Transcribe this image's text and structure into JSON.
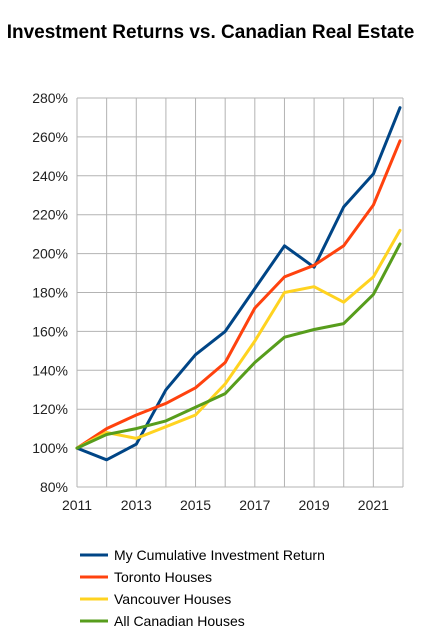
{
  "chart_data": {
    "type": "line",
    "title": "Investment Returns vs. Canadian Real Estate",
    "xlabel": "",
    "ylabel": "",
    "xlim": [
      2011,
      2022
    ],
    "ylim": [
      80,
      280
    ],
    "x_ticks": [
      2011,
      2013,
      2015,
      2017,
      2019,
      2021
    ],
    "x_tick_labels": [
      "2011",
      "2013",
      "2015",
      "2017",
      "2019",
      "2021"
    ],
    "y_ticks": [
      80,
      100,
      120,
      140,
      160,
      180,
      200,
      220,
      240,
      260,
      280
    ],
    "y_tick_labels": [
      "80%",
      "100%",
      "120%",
      "140%",
      "160%",
      "180%",
      "200%",
      "220%",
      "240%",
      "260%",
      "280%"
    ],
    "grid": true,
    "legend_position": "bottom",
    "x": [
      2011,
      2012,
      2013,
      2014,
      2015,
      2016,
      2017,
      2018,
      2019,
      2020,
      2021,
      2021.9
    ],
    "series": [
      {
        "name": "My Cumulative Investment Return",
        "color": "#004586",
        "values": [
          100,
          94,
          102,
          130,
          148,
          160,
          182,
          204,
          193,
          224,
          241,
          275
        ]
      },
      {
        "name": "Toronto Houses",
        "color": "#ff420e",
        "values": [
          100,
          110,
          117,
          123,
          131,
          144,
          172,
          188,
          194,
          204,
          225,
          258
        ]
      },
      {
        "name": "Vancouver Houses",
        "color": "#ffd320",
        "values": [
          100,
          108,
          105,
          111,
          117,
          133,
          155,
          180,
          183,
          175,
          188,
          212
        ]
      },
      {
        "name": "All Canadian Houses",
        "color": "#579d1c",
        "values": [
          100,
          107,
          110,
          114,
          121,
          128,
          144,
          157,
          161,
          164,
          179,
          205
        ]
      }
    ]
  }
}
